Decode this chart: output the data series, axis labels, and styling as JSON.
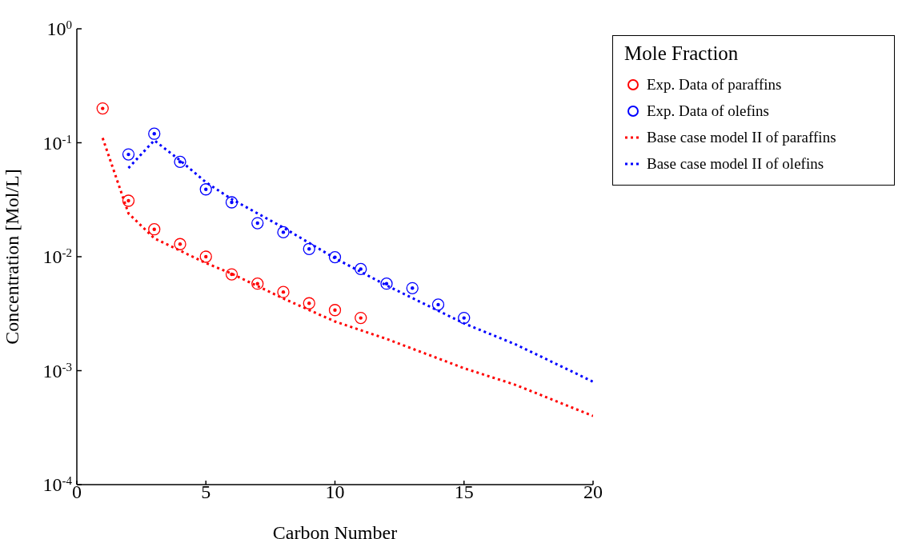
{
  "chart_data": {
    "type": "scatter",
    "xlabel": "Carbon Number",
    "ylabel": "Concentration [Mol/L]",
    "legend_title": "Mole Fraction",
    "xlim": [
      0,
      20
    ],
    "xticks": [
      0,
      5,
      10,
      15,
      20
    ],
    "ylim": [
      0.0001,
      1
    ],
    "yticks": [
      {
        "value": 1,
        "label": "10$^{0}$"
      },
      {
        "value": 0.1,
        "label": "10$^{-1}$"
      },
      {
        "value": 0.01,
        "label": "10$^{-2}$"
      },
      {
        "value": 0.001,
        "label": "10$^{-3}$"
      },
      {
        "value": 0.0001,
        "label": "10$^{-4}$"
      }
    ],
    "log": "y",
    "grid": false,
    "legend": "top right",
    "marker": "circle",
    "series": [
      {
        "name": "Exp. Data of paraffins",
        "color": "#ff0000",
        "x": [
          1,
          2,
          3,
          4,
          5,
          6,
          7,
          8,
          9,
          10,
          11
        ],
        "values": [
          0.2,
          0.031,
          0.0174,
          0.0129,
          0.01,
          0.007,
          0.0058,
          0.0049,
          0.0039,
          0.0034,
          0.0029
        ]
      },
      {
        "name": "Exp. Data of olefins",
        "color": "#0000ff",
        "x": [
          2,
          3,
          4,
          5,
          6,
          7,
          8,
          9,
          10,
          11,
          12,
          13,
          14,
          15
        ],
        "values": [
          0.079,
          0.12,
          0.068,
          0.039,
          0.03,
          0.0197,
          0.0164,
          0.0117,
          0.0099,
          0.0078,
          0.0058,
          0.0053,
          0.0038,
          0.0029
        ]
      },
      {
        "name": "Base case model II of paraffins",
        "type": "line",
        "marker": "none",
        "line_style": "dotted",
        "color": "#ff0000",
        "x": [
          1,
          2,
          3,
          4,
          5,
          6,
          8,
          10,
          12,
          15,
          17,
          20
        ],
        "values": [
          0.11,
          0.024,
          0.0145,
          0.0113,
          0.0088,
          0.0071,
          0.0043,
          0.0027,
          0.0019,
          0.00105,
          0.00075,
          0.0004
        ]
      },
      {
        "name": "Base case model II of olefins",
        "type": "line",
        "marker": "none",
        "line_style": "dotted",
        "color": "#0000ff",
        "x": [
          2,
          3,
          4,
          5,
          6,
          8,
          10,
          12,
          15,
          17,
          20
        ],
        "values": [
          0.06,
          0.105,
          0.07,
          0.045,
          0.032,
          0.018,
          0.0097,
          0.0056,
          0.0026,
          0.0017,
          0.0008
        ]
      }
    ]
  }
}
